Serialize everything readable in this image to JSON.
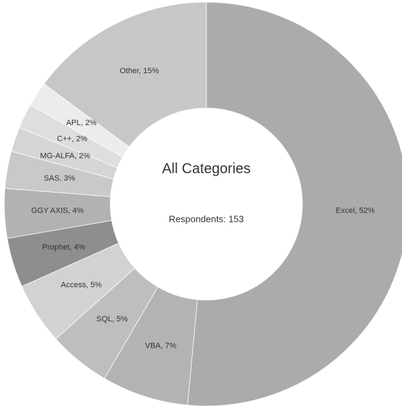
{
  "chart_data": {
    "type": "donut",
    "title": "All Categories",
    "subtitle": "Respondents:  153",
    "value_labels": [
      "Excel, 52%",
      "VBA, 7%",
      "SQL, 5%",
      "Access, 5%",
      "Prophet, 4%",
      "GGY AXIS, 4%",
      "SAS, 3%",
      "MG-ALFA, 2%",
      "C++, 2%",
      "APL, 2%",
      "Other, 15%"
    ],
    "values": [
      52,
      7,
      5,
      5,
      4,
      4,
      3,
      2,
      2,
      2,
      15
    ],
    "colors": [
      "#ababac",
      "#b3b3b3",
      "#bebebe",
      "#d2d2d2",
      "#8e8e8e",
      "#b2b2b2",
      "#c9c9c9",
      "#d5d5d5",
      "#dedede",
      "#ececec",
      "#c7c7c7"
    ]
  }
}
